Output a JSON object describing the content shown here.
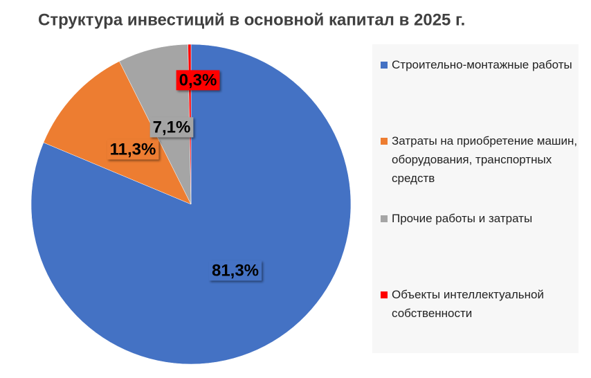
{
  "chart_data": {
    "type": "pie",
    "title": "Структура инвестиций в основной капитал в 2025 г.",
    "categories": [
      "Строительно-монтажные работы",
      "Затраты на приобретение машин, оборудования, транспортных средств",
      "Прочие работы и затраты",
      "Объекты интеллектуальной собственности"
    ],
    "values": [
      81.3,
      11.3,
      7.1,
      0.3
    ],
    "value_labels": [
      "81,3%",
      "11,3%",
      "7,1%",
      "0,3%"
    ],
    "colors": [
      "#4472c4",
      "#ed7d31",
      "#a5a5a5",
      "#ff0000"
    ]
  }
}
